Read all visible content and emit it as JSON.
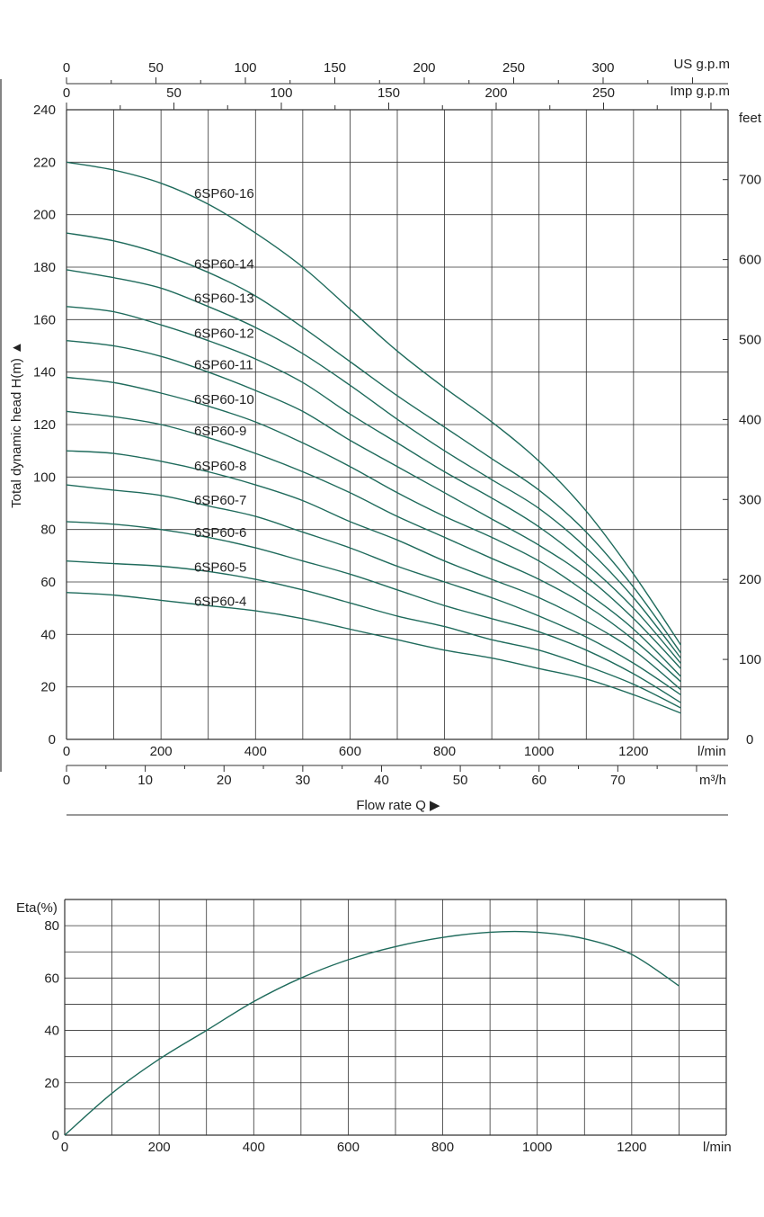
{
  "colors": {
    "curve": "#1f6b5c",
    "grid": "#333333",
    "text": "#222222"
  },
  "labels": {
    "us_gpm": "US g.p.m",
    "imp_gpm": "Imp g.p.m",
    "feet": "feet",
    "lmin": "l/min",
    "m3h": "m³/h",
    "y_axis": "Total dynamic head H(m) ▲",
    "flow_title": "Flow  rate Q ▶",
    "eta_axis": "Eta(%)"
  },
  "chart_data": [
    {
      "type": "line",
      "title": "",
      "xlabel": "Flow  rate Q ▶",
      "ylabel": "Total dynamic head H(m) ▲",
      "x_unit": "l/min",
      "xlim": [
        0,
        1400
      ],
      "ylim": [
        0,
        240
      ],
      "x_ticks": [
        0,
        200,
        400,
        600,
        800,
        1000,
        1200
      ],
      "y_ticks": [
        0,
        20,
        40,
        60,
        80,
        100,
        120,
        140,
        160,
        180,
        200,
        220,
        240
      ],
      "grid": true,
      "secondary_axes": {
        "us_gpm": {
          "label": "US g.p.m",
          "ticks": [
            0,
            50,
            100,
            150,
            200,
            250,
            300
          ]
        },
        "imp_gpm": {
          "label": "Imp g.p.m",
          "ticks": [
            0,
            50,
            100,
            150,
            200,
            250
          ]
        },
        "feet": {
          "label": "feet",
          "ticks": [
            0,
            100,
            200,
            300,
            400,
            500,
            600,
            700
          ]
        },
        "m3h": {
          "label": "m³/h",
          "ticks": [
            0,
            10,
            20,
            30,
            40,
            50,
            60,
            70
          ]
        }
      },
      "x": [
        0,
        100,
        200,
        300,
        400,
        500,
        600,
        700,
        800,
        900,
        1000,
        1100,
        1200,
        1300
      ],
      "series": [
        {
          "name": "6SP60-16",
          "values": [
            220,
            217,
            212,
            204,
            193,
            180,
            164,
            148,
            134,
            121,
            106,
            87,
            63,
            36
          ]
        },
        {
          "name": "6SP60-14",
          "values": [
            193,
            190,
            185,
            178,
            169,
            157,
            144,
            131,
            119,
            107,
            95,
            79,
            58,
            33
          ]
        },
        {
          "name": "6SP60-13",
          "values": [
            179,
            176,
            172,
            165,
            157,
            147,
            135,
            122,
            110,
            99,
            88,
            73,
            54,
            31
          ]
        },
        {
          "name": "6SP60-12",
          "values": [
            165,
            163,
            158,
            152,
            145,
            136,
            124,
            113,
            102,
            92,
            81,
            67,
            50,
            29
          ]
        },
        {
          "name": "6SP60-11",
          "values": [
            152,
            150,
            146,
            140,
            133,
            125,
            114,
            104,
            94,
            84,
            74,
            62,
            46,
            27
          ]
        },
        {
          "name": "6SP60-10",
          "values": [
            138,
            136,
            132,
            127,
            121,
            113,
            104,
            94,
            85,
            77,
            68,
            56,
            42,
            24
          ]
        },
        {
          "name": "6SP60-9",
          "values": [
            125,
            123,
            120,
            115,
            109,
            102,
            94,
            85,
            77,
            69,
            61,
            51,
            38,
            22
          ]
        },
        {
          "name": "6SP60-8",
          "values": [
            110,
            109,
            106,
            102,
            97,
            91,
            83,
            76,
            68,
            61,
            54,
            45,
            34,
            19
          ]
        },
        {
          "name": "6SP60-7",
          "values": [
            97,
            95,
            93,
            89,
            85,
            79,
            73,
            66,
            60,
            54,
            47,
            39,
            29,
            17
          ]
        },
        {
          "name": "6SP60-6",
          "values": [
            83,
            82,
            80,
            77,
            73,
            68,
            63,
            57,
            51,
            46,
            41,
            34,
            25,
            14
          ]
        },
        {
          "name": "6SP60-5",
          "values": [
            68,
            67,
            66,
            64,
            61,
            57,
            52,
            47,
            43,
            38,
            34,
            28,
            21,
            12
          ]
        },
        {
          "name": "6SP60-4",
          "values": [
            56,
            55,
            53,
            51,
            49,
            46,
            42,
            38,
            34,
            31,
            27,
            23,
            17,
            10
          ]
        }
      ]
    },
    {
      "type": "line",
      "title": "",
      "xlabel": "l/min",
      "ylabel": "Eta(%)",
      "xlim": [
        0,
        1400
      ],
      "ylim": [
        0,
        90
      ],
      "x_ticks": [
        0,
        200,
        400,
        600,
        800,
        1000,
        1200
      ],
      "y_ticks": [
        0,
        20,
        40,
        60,
        80
      ],
      "grid": true,
      "x": [
        0,
        100,
        200,
        300,
        400,
        500,
        600,
        700,
        800,
        900,
        1000,
        1100,
        1200,
        1300
      ],
      "series": [
        {
          "values": [
            0,
            16,
            29,
            40,
            51,
            60,
            67,
            72,
            75.5,
            77.5,
            77.5,
            75,
            69,
            57
          ]
        }
      ]
    }
  ]
}
